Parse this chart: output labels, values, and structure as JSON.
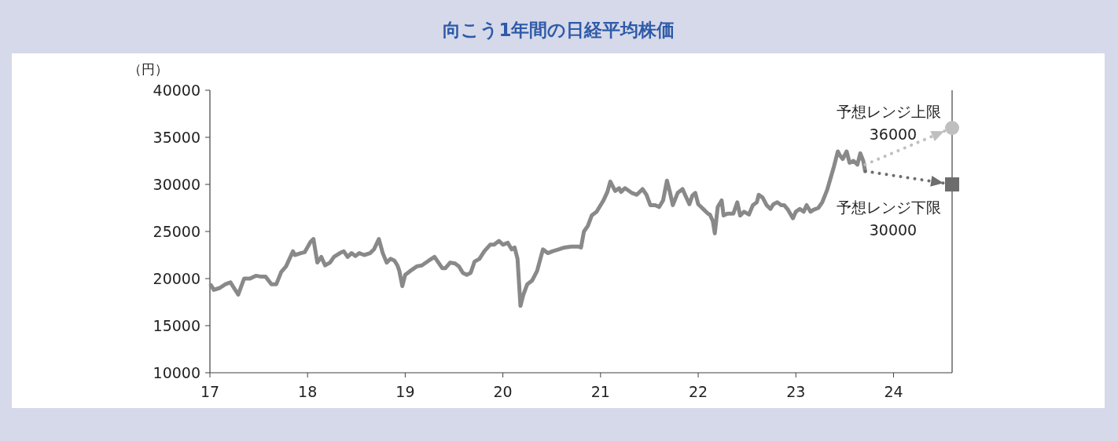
{
  "chart_data": {
    "type": "line",
    "title": "向こう1年間の日経平均株価",
    "ylabel": "（円）",
    "xlim": [
      2017,
      2024.6
    ],
    "xticks": [
      {
        "value": 2017,
        "label": "17"
      },
      {
        "value": 2018,
        "label": "18"
      },
      {
        "value": 2019,
        "label": "19"
      },
      {
        "value": 2020,
        "label": "20"
      },
      {
        "value": 2021,
        "label": "21"
      },
      {
        "value": 2022,
        "label": "22"
      },
      {
        "value": 2023,
        "label": "23"
      },
      {
        "value": 2024,
        "label": "24"
      }
    ],
    "ylim": [
      10000,
      40000
    ],
    "yticks": [
      10000,
      15000,
      20000,
      25000,
      30000,
      35000,
      40000
    ],
    "grid": false,
    "series": [
      {
        "color": "#898989",
        "line_style": "solid",
        "marker": "none",
        "x": [
          2017.01,
          2017.04,
          2017.1,
          2017.16,
          2017.21,
          2017.24,
          2017.29,
          2017.35,
          2017.41,
          2017.47,
          2017.53,
          2017.57,
          2017.63,
          2017.68,
          2017.73,
          2017.78,
          2017.85,
          2017.87,
          2017.93,
          2017.97,
          2018.03,
          2018.06,
          2018.1,
          2018.14,
          2018.18,
          2018.23,
          2018.27,
          2018.33,
          2018.37,
          2018.41,
          2018.45,
          2018.49,
          2018.53,
          2018.58,
          2018.64,
          2018.68,
          2018.73,
          2018.77,
          2018.81,
          2018.85,
          2018.89,
          2018.92,
          2018.94,
          2018.97,
          2019.0,
          2019.05,
          2019.12,
          2019.17,
          2019.24,
          2019.3,
          2019.34,
          2019.38,
          2019.41,
          2019.46,
          2019.51,
          2019.55,
          2019.59,
          2019.63,
          2019.67,
          2019.71,
          2019.76,
          2019.81,
          2019.87,
          2019.91,
          2019.96,
          2020.0,
          2020.05,
          2020.09,
          2020.12,
          2020.15,
          2020.18,
          2020.21,
          2020.25,
          2020.3,
          2020.35,
          2020.41,
          2020.46,
          2020.51,
          2020.57,
          2020.63,
          2020.7,
          2020.77,
          2020.8,
          2020.83,
          2020.87,
          2020.91,
          2020.96,
          2021.0,
          2021.03,
          2021.07,
          2021.1,
          2021.15,
          2021.19,
          2021.21,
          2021.25,
          2021.32,
          2021.37,
          2021.43,
          2021.47,
          2021.51,
          2021.56,
          2021.6,
          2021.64,
          2021.68,
          2021.71,
          2021.74,
          2021.79,
          2021.84,
          2021.87,
          2021.91,
          2021.94,
          2021.97,
          2022.0,
          2022.06,
          2022.1,
          2022.12,
          2022.15,
          2022.17,
          2022.2,
          2022.24,
          2022.26,
          2022.3,
          2022.36,
          2022.4,
          2022.43,
          2022.47,
          2022.52,
          2022.56,
          2022.6,
          2022.62,
          2022.66,
          2022.7,
          2022.74,
          2022.77,
          2022.81,
          2022.85,
          2022.88,
          2022.92,
          2022.97,
          2023.0,
          2023.04,
          2023.08,
          2023.11,
          2023.15,
          2023.18,
          2023.23,
          2023.27,
          2023.32,
          2023.39,
          2023.43,
          2023.45,
          2023.48,
          2023.52,
          2023.55,
          2023.59,
          2023.63,
          2023.66,
          2023.69,
          2023.71
        ],
        "values": [
          19300,
          18800,
          19000,
          19400,
          19600,
          19100,
          18300,
          20000,
          20000,
          20300,
          20200,
          20200,
          19400,
          19400,
          20700,
          21300,
          22900,
          22500,
          22700,
          22800,
          23900,
          24200,
          21700,
          22300,
          21400,
          21700,
          22300,
          22700,
          22900,
          22300,
          22700,
          22400,
          22700,
          22500,
          22700,
          23100,
          24200,
          22700,
          21700,
          22100,
          21900,
          21400,
          20800,
          19200,
          20400,
          20800,
          21300,
          21400,
          21900,
          22300,
          21700,
          21100,
          21100,
          21700,
          21600,
          21300,
          20600,
          20400,
          20600,
          21800,
          22100,
          22900,
          23600,
          23600,
          24000,
          23600,
          23800,
          23100,
          23300,
          22100,
          17100,
          18300,
          19400,
          19800,
          20800,
          23100,
          22700,
          22900,
          23100,
          23300,
          23400,
          23400,
          23300,
          25000,
          25600,
          26700,
          27100,
          27800,
          28300,
          29200,
          30300,
          29300,
          29600,
          29200,
          29600,
          29100,
          28900,
          29500,
          28900,
          27800,
          27800,
          27600,
          28300,
          30400,
          29200,
          27800,
          29100,
          29500,
          28800,
          27900,
          28800,
          29100,
          27900,
          27300,
          26900,
          26800,
          26100,
          24800,
          27600,
          28300,
          26700,
          26900,
          26900,
          28100,
          26700,
          27100,
          26800,
          27800,
          28100,
          28900,
          28600,
          27800,
          27400,
          27900,
          28100,
          27800,
          27800,
          27300,
          26400,
          27100,
          27400,
          27100,
          27800,
          27100,
          27300,
          27500,
          28100,
          29400,
          31900,
          33500,
          33100,
          32700,
          33500,
          32300,
          32500,
          32100,
          33300,
          32500,
          31400
        ]
      },
      {
        "name": "予想レンジ上限",
        "color": "#bfbfbf",
        "line_style": "dotted",
        "marker": "circle",
        "x": [
          2023.71,
          2024.6
        ],
        "values": [
          32100,
          36000
        ],
        "value_labels": [
          null,
          "36000"
        ]
      },
      {
        "name": "予想レンジ下限",
        "color": "#6d6d6d",
        "line_style": "dotted",
        "marker": "square",
        "x": [
          2023.71,
          2024.6
        ],
        "values": [
          31400,
          30000
        ],
        "value_labels": [
          null,
          "30000"
        ]
      }
    ]
  }
}
